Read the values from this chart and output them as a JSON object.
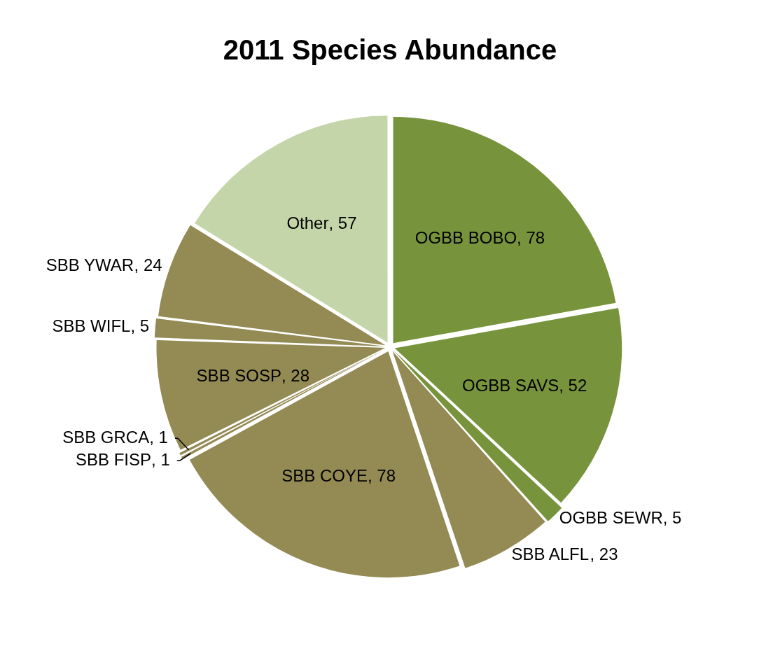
{
  "chart_data": {
    "type": "pie",
    "title": "2011 Species Abundance",
    "categories": [
      "OGBB BOBO",
      "OGBB SAVS",
      "OGBB SEWR",
      "SBB ALFL",
      "SBB COYE",
      "SBB FISP",
      "SBB GRCA",
      "SBB SOSP",
      "SBB WIFL",
      "SBB YWAR",
      "Other"
    ],
    "values": [
      78,
      52,
      5,
      23,
      78,
      1,
      1,
      28,
      5,
      24,
      57
    ],
    "value_labels": [
      ", 78",
      ", 52",
      ", 5",
      ", 23",
      ", 78",
      ", 1",
      ", 1",
      ", 28",
      ", 5",
      ", 24",
      ", 57"
    ],
    "colors": [
      "#77933c",
      "#77933c",
      "#77933c",
      "#948a54",
      "#948a54",
      "#948a54",
      "#948a54",
      "#948a54",
      "#948a54",
      "#948a54",
      "#c4d6a9"
    ],
    "legend": false
  }
}
